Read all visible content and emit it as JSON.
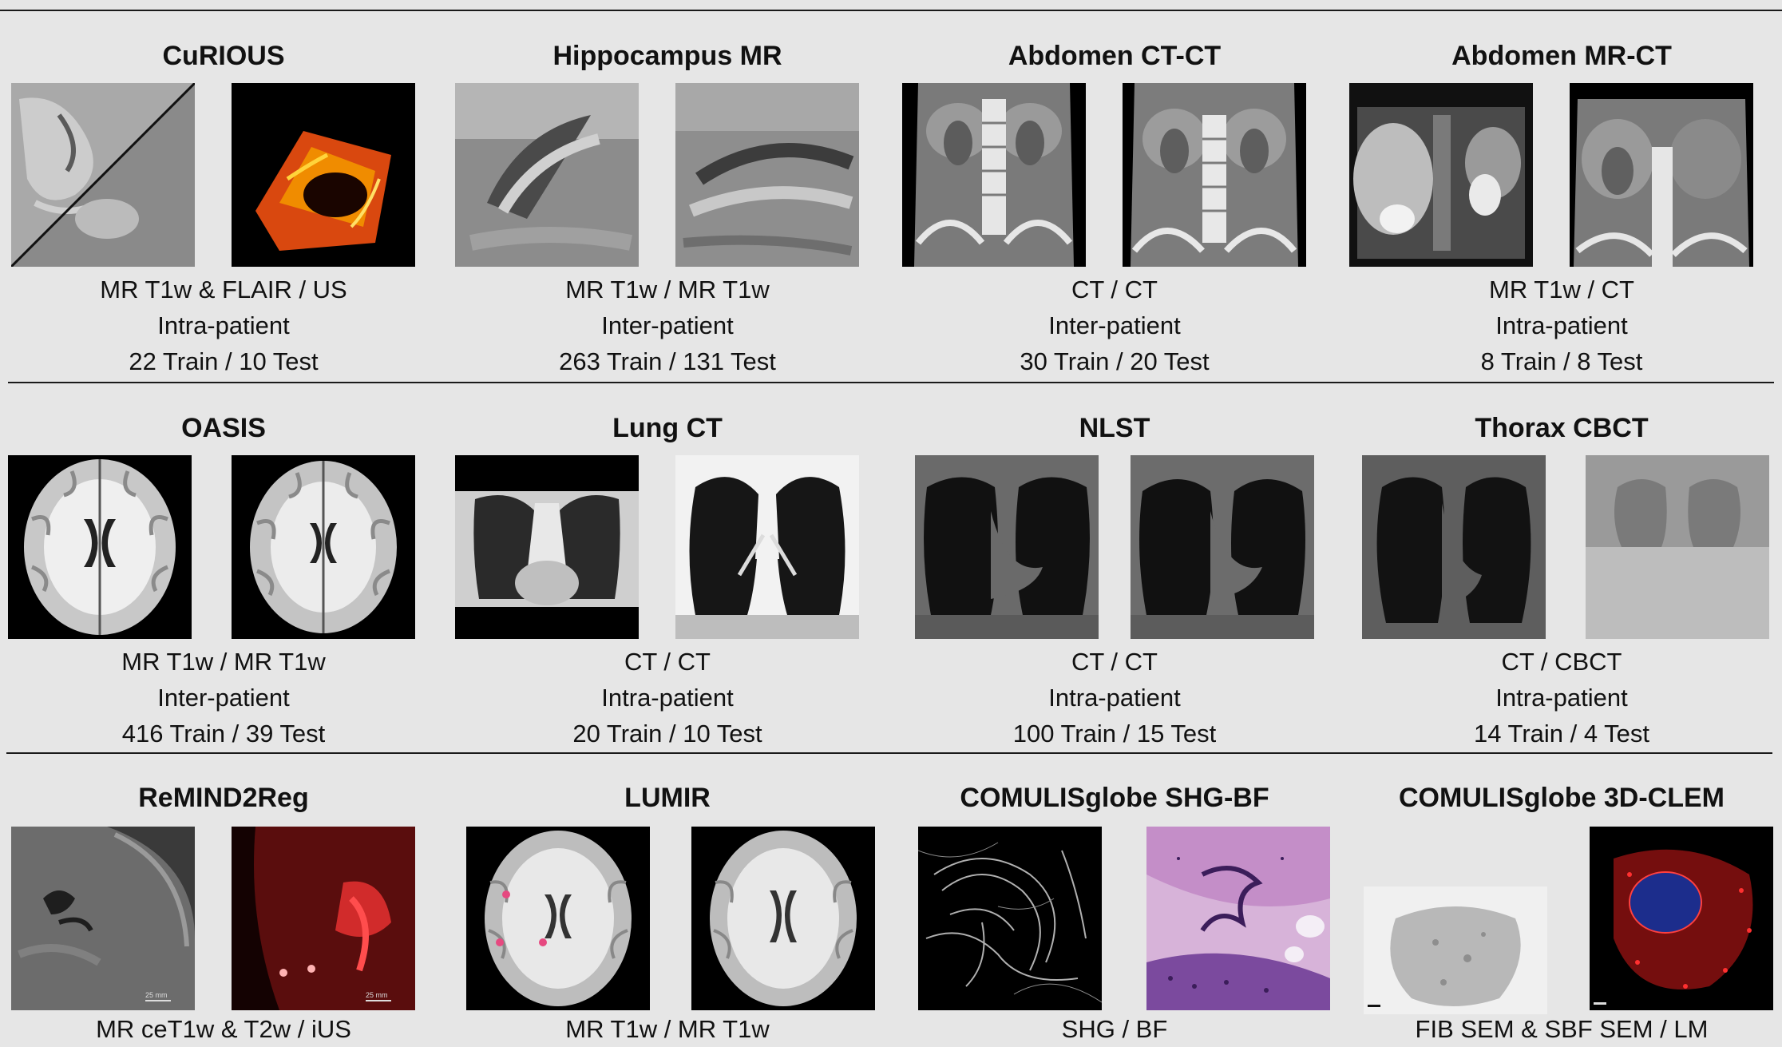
{
  "datasets": [
    {
      "title": "CuRIOUS",
      "modality": "MR T1w & FLAIR / US",
      "pairing": "Intra-patient",
      "split": "22 Train / 10 Test",
      "image_left": "brain-mri-slice",
      "image_right": "ultrasound-volume"
    },
    {
      "title": "Hippocampus MR",
      "modality": "MR T1w / MR T1w",
      "pairing": "Inter-patient",
      "split": "263 Train / 131 Test",
      "image_left": "hippocampus-mri",
      "image_right": "hippocampus-mri"
    },
    {
      "title": "Abdomen CT-CT",
      "modality": "CT / CT",
      "pairing": "Inter-patient",
      "split": "30 Train / 20 Test",
      "image_left": "abdomen-ct",
      "image_right": "abdomen-ct"
    },
    {
      "title": "Abdomen MR-CT",
      "modality": "MR T1w / CT",
      "pairing": "Intra-patient",
      "split": "8 Train / 8 Test",
      "image_left": "abdomen-mr",
      "image_right": "abdomen-ct"
    },
    {
      "title": "OASIS",
      "modality": "MR T1w / MR T1w",
      "pairing": "Inter-patient",
      "split": "416 Train / 39 Test",
      "image_left": "brain-axial-mri",
      "image_right": "brain-axial-mri"
    },
    {
      "title": "Lung CT",
      "modality": "CT / CT",
      "pairing": "Intra-patient",
      "split": "20 Train / 10 Test",
      "image_left": "lung-ct",
      "image_right": "lung-ct"
    },
    {
      "title": "NLST",
      "modality": "CT / CT",
      "pairing": "Intra-patient",
      "split": "100 Train / 15 Test",
      "image_left": "lung-ct",
      "image_right": "lung-ct"
    },
    {
      "title": "Thorax CBCT",
      "modality": "CT / CBCT",
      "pairing": "Intra-patient",
      "split": "14 Train / 4 Test",
      "image_left": "lung-ct",
      "image_right": "lung-cbct"
    },
    {
      "title": "ReMIND2Reg",
      "modality": "MR ceT1w & T2w / iUS",
      "pairing": "",
      "split": "",
      "image_left": "brain-mri-slice",
      "image_right": "ultrasound-red"
    },
    {
      "title": "LUMIR",
      "modality": "MR T1w / MR T1w",
      "pairing": "",
      "split": "",
      "image_left": "brain-axial-mri",
      "image_right": "brain-axial-mri"
    },
    {
      "title": "COMULISglobe SHG-BF",
      "modality": "SHG / BF",
      "pairing": "",
      "split": "",
      "image_left": "shg-microscopy",
      "image_right": "brightfield-histology"
    },
    {
      "title": "COMULISglobe 3D-CLEM",
      "modality": "FIB SEM & SBF SEM / LM",
      "pairing": "",
      "split": "",
      "image_left": "electron-microscopy",
      "image_right": "fluorescence-cell"
    }
  ],
  "scale_bar_text": "25 mm",
  "colors": {
    "background": "#e6e6e6",
    "rule": "#1a1a1a"
  }
}
